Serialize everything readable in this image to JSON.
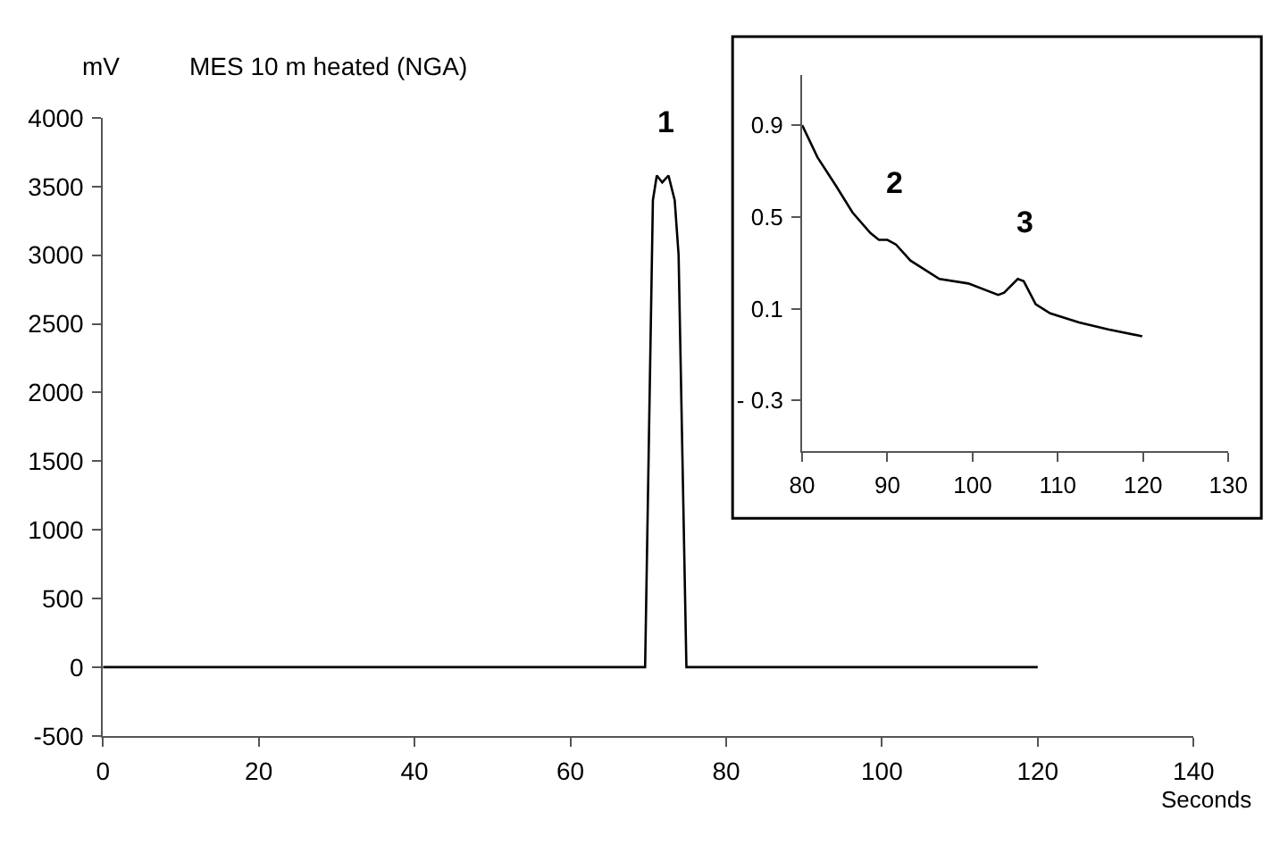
{
  "chart_data": [
    {
      "type": "line",
      "title": "MES 10 m heated (NGA)",
      "xlabel": "Seconds",
      "ylabel": "mV",
      "x": [
        0,
        69.6,
        70.6,
        71.1,
        71.8,
        72.6,
        73.4,
        73.9,
        74.9,
        120
      ],
      "series": [
        {
          "color": "#000000",
          "values": [
            0,
            0,
            3400,
            3580,
            3530,
            3580,
            3400,
            3000,
            0,
            0
          ]
        }
      ],
      "xlim": [
        0,
        140
      ],
      "xticks": [
        0,
        20,
        40,
        60,
        80,
        100,
        120,
        140
      ],
      "ylim": [
        -500,
        4000
      ],
      "yticks": [
        -500,
        0,
        500,
        1000,
        1500,
        2000,
        2500,
        3000,
        3500,
        4000
      ],
      "annotations": [
        {
          "text": "1",
          "x": 72.2,
          "y": 3580
        }
      ],
      "grid": false
    },
    {
      "type": "line",
      "x": [
        80,
        81.8,
        83.9,
        85.9,
        88.0,
        89.0,
        90.0,
        91.0,
        92.7,
        96.1,
        99.5,
        103.0,
        103.7,
        105.3,
        106.0,
        107.4,
        109.1,
        112.5,
        115.9,
        119.9
      ],
      "series": [
        {
          "color": "#000000",
          "values": [
            0.9,
            0.76,
            0.64,
            0.52,
            0.43,
            0.4,
            0.4,
            0.38,
            0.31,
            0.23,
            0.21,
            0.16,
            0.17,
            0.23,
            0.22,
            0.12,
            0.08,
            0.04,
            0.01,
            -0.02
          ]
        }
      ],
      "xlim": [
        80,
        130
      ],
      "xticks": [
        80,
        90,
        100,
        110,
        120,
        130
      ],
      "ylim": [
        -0.52,
        1.12
      ],
      "yticks": [
        {
          "value": -0.3,
          "label": "- 0.3"
        },
        0.1,
        0.5,
        0.9
      ],
      "annotations": [
        {
          "text": "2",
          "x": 90.0,
          "y": 0.4
        },
        {
          "text": "3",
          "x": 105.3,
          "y": 0.23
        }
      ],
      "grid": false
    }
  ]
}
